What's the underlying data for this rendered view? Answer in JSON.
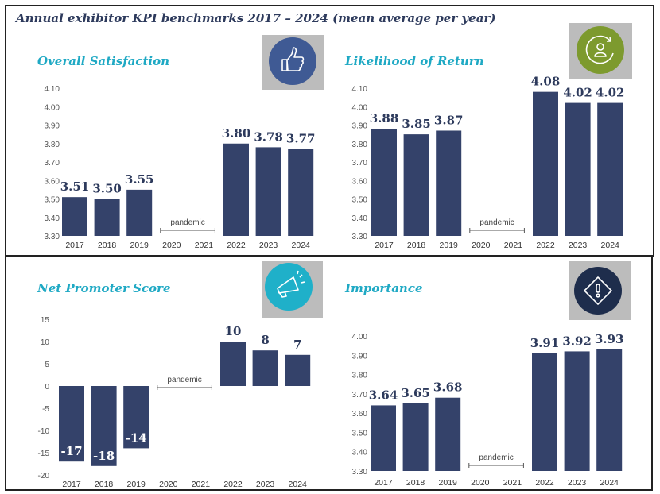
{
  "header": {
    "title": "Annual exhibitor KPI benchmarks 2017 – 2024 (mean average per year)"
  },
  "colors": {
    "bar": "#34426a",
    "panel_title": "#1fa9c4",
    "header_title": "#2d3a5c",
    "label": "#2d3a5c",
    "axis_text": "#555555",
    "icon_bg": "#bcbcbc"
  },
  "annotation": "pandemic",
  "chart_data": [
    {
      "type": "bar",
      "title": "Overall Satisfaction",
      "icon": "thumbs-up-icon",
      "icon_color": "#3f5a94",
      "categories": [
        "2017",
        "2018",
        "2019",
        "2020",
        "2021",
        "2022",
        "2023",
        "2024"
      ],
      "values": [
        3.51,
        3.5,
        3.55,
        null,
        null,
        3.8,
        3.78,
        3.77
      ],
      "value_labels": [
        "3.51",
        "3.50",
        "3.55",
        "",
        "",
        "3.80",
        "3.78",
        "3.77"
      ],
      "ylim": [
        3.3,
        4.1
      ],
      "yticks": [
        "4.10",
        "4.00",
        "3.90",
        "3.80",
        "3.70",
        "3.60",
        "3.50",
        "3.40",
        "3.30"
      ],
      "grid": false
    },
    {
      "type": "bar",
      "title": "Likelihood of Return",
      "icon": "user-return-icon",
      "icon_color": "#7d9a2e",
      "categories": [
        "2017",
        "2018",
        "2019",
        "2020",
        "2021",
        "2022",
        "2023",
        "2024"
      ],
      "values": [
        3.88,
        3.85,
        3.87,
        null,
        null,
        4.08,
        4.02,
        4.02
      ],
      "value_labels": [
        "3.88",
        "3.85",
        "3.87",
        "",
        "",
        "4.08",
        "4.02",
        "4.02"
      ],
      "ylim": [
        3.3,
        4.1
      ],
      "yticks": [
        "4.10",
        "4.00",
        "3.90",
        "3.80",
        "3.70",
        "3.60",
        "3.50",
        "3.40",
        "3.30"
      ],
      "grid": false
    },
    {
      "type": "bar",
      "title": "Net Promoter Score",
      "icon": "megaphone-icon",
      "icon_color": "#1fb0c9",
      "categories": [
        "2017",
        "2018",
        "2019",
        "2020",
        "2021",
        "2022",
        "2023",
        "2024"
      ],
      "values": [
        -17,
        -18,
        -14,
        null,
        null,
        10,
        8,
        7
      ],
      "value_labels": [
        "-17",
        "-18",
        "-14",
        "",
        "",
        "10",
        "8",
        "7"
      ],
      "ylim": [
        -20,
        15
      ],
      "yticks": [
        "15",
        "10",
        "5",
        "0",
        "-5",
        "-10",
        "-15",
        "-20"
      ],
      "grid": false
    },
    {
      "type": "bar",
      "title": "Importance",
      "icon": "warning-diamond-icon",
      "icon_color": "#1e2d4c",
      "categories": [
        "2017",
        "2018",
        "2019",
        "2020",
        "2021",
        "2022",
        "2023",
        "2024"
      ],
      "values": [
        3.64,
        3.65,
        3.68,
        null,
        null,
        3.91,
        3.92,
        3.93
      ],
      "value_labels": [
        "3.64",
        "3.65",
        "3.68",
        "",
        "",
        "3.91",
        "3.92",
        "3.93"
      ],
      "ylim": [
        3.3,
        4.0
      ],
      "yticks": [
        "4.00",
        "3.90",
        "3.80",
        "3.70",
        "3.60",
        "3.50",
        "3.40",
        "3.30"
      ],
      "grid": false
    }
  ]
}
